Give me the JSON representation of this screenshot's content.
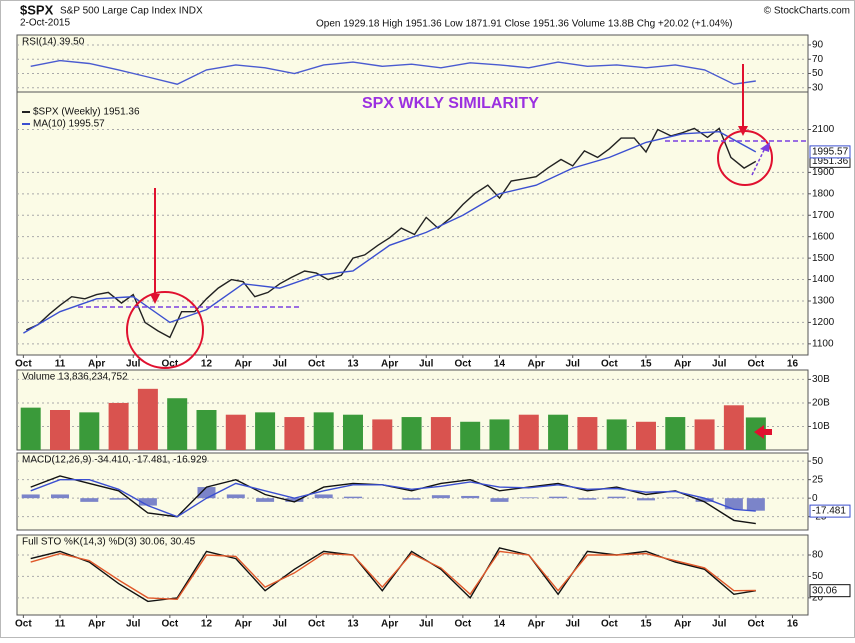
{
  "header": {
    "symbol": "$SPX",
    "name": "S&P 500 Large Cap Index INDX",
    "date": "2-Oct-2015",
    "quote": "Open 1929.18  High 1951.36  Low 1871.91  Close 1951.36  Volume 13.8B  Chg +20.02 (+1.04%)",
    "credit": "© StockCharts.com"
  },
  "chart_data": [
    {
      "type": "line",
      "title": "RSI(14) 39.50",
      "xlim": [
        2010.727,
        2016.106
      ],
      "ylim": [
        24,
        104
      ],
      "yticks": [
        30,
        50,
        70,
        90
      ],
      "series": [
        {
          "color": "#4a5bd0",
          "x": [
            2010.8,
            2011,
            2011.2,
            2011.4,
            2011.6,
            2011.8,
            2012,
            2012.2,
            2012.4,
            2012.6,
            2012.8,
            2013,
            2013.2,
            2013.4,
            2013.6,
            2013.8,
            2014,
            2014.2,
            2014.4,
            2014.6,
            2014.8,
            2015,
            2015.2,
            2015.4,
            2015.6,
            2015.75
          ],
          "values": [
            60,
            68,
            64,
            55,
            45,
            35,
            55,
            62,
            58,
            50,
            62,
            66,
            60,
            63,
            58,
            65,
            62,
            58,
            66,
            60,
            62,
            58,
            62,
            55,
            35,
            39.5
          ]
        }
      ]
    },
    {
      "type": "line",
      "annotation": "SPX WKLY SIMILARITY",
      "xlim": [
        2010.727,
        2016.106
      ],
      "ylim": [
        1048,
        2275
      ],
      "yticks": [
        1100,
        1200,
        1300,
        1400,
        1500,
        1600,
        1700,
        1800,
        1900,
        2100
      ],
      "xticks": [
        {
          "value": 2010.75,
          "label": "Oct"
        },
        {
          "value": 2011,
          "label": "11"
        },
        {
          "value": 2011.25,
          "label": "Apr"
        },
        {
          "value": 2011.5,
          "label": "Jul"
        },
        {
          "value": 2011.75,
          "label": "Oct"
        },
        {
          "value": 2012,
          "label": "12"
        },
        {
          "value": 2012.25,
          "label": "Apr"
        },
        {
          "value": 2012.5,
          "label": "Jul"
        },
        {
          "value": 2012.75,
          "label": "Oct"
        },
        {
          "value": 2013,
          "label": "13"
        },
        {
          "value": 2013.25,
          "label": "Apr"
        },
        {
          "value": 2013.5,
          "label": "Jul"
        },
        {
          "value": 2013.75,
          "label": "Oct"
        },
        {
          "value": 2014,
          "label": "14"
        },
        {
          "value": 2014.25,
          "label": "Apr"
        },
        {
          "value": 2014.5,
          "label": "Jul"
        },
        {
          "value": 2014.75,
          "label": "Oct"
        },
        {
          "value": 2015,
          "label": "15"
        },
        {
          "value": 2015.25,
          "label": "Apr"
        },
        {
          "value": 2015.5,
          "label": "Jul"
        },
        {
          "value": 2015.75,
          "label": "Oct"
        },
        {
          "value": 2016,
          "label": "16"
        }
      ],
      "series": [
        {
          "name": "$SPX (Weekly) 1951.36",
          "color": "#222222",
          "show_last": true,
          "x": [
            2010.77,
            2010.85,
            2010.93,
            2011.0,
            2011.08,
            2011.17,
            2011.25,
            2011.33,
            2011.42,
            2011.5,
            2011.58,
            2011.67,
            2011.75,
            2011.83,
            2011.92,
            2012.0,
            2012.08,
            2012.17,
            2012.25,
            2012.33,
            2012.42,
            2012.5,
            2012.58,
            2012.67,
            2012.75,
            2012.83,
            2012.92,
            2013.0,
            2013.08,
            2013.17,
            2013.25,
            2013.33,
            2013.42,
            2013.5,
            2013.58,
            2013.67,
            2013.75,
            2013.83,
            2013.92,
            2014.0,
            2014.08,
            2014.17,
            2014.25,
            2014.33,
            2014.42,
            2014.5,
            2014.58,
            2014.67,
            2014.75,
            2014.83,
            2014.92,
            2015.0,
            2015.08,
            2015.17,
            2015.25,
            2015.33,
            2015.42,
            2015.5,
            2015.58,
            2015.67,
            2015.75
          ],
          "values": [
            1165,
            1190,
            1240,
            1280,
            1320,
            1310,
            1330,
            1340,
            1290,
            1330,
            1200,
            1160,
            1130,
            1250,
            1250,
            1310,
            1360,
            1400,
            1390,
            1320,
            1340,
            1380,
            1410,
            1440,
            1430,
            1400,
            1420,
            1500,
            1515,
            1560,
            1595,
            1640,
            1610,
            1690,
            1640,
            1690,
            1750,
            1800,
            1840,
            1780,
            1860,
            1870,
            1880,
            1920,
            1960,
            1930,
            2000,
            1970,
            2010,
            2060,
            2060,
            1995,
            2100,
            2070,
            2085,
            2105,
            2063,
            2105,
            1970,
            1920,
            1951.36
          ]
        },
        {
          "name": "MA(10) 1995.57",
          "color": "#3b4fd0",
          "show_last": true,
          "x": [
            2010.75,
            2011.0,
            2011.25,
            2011.5,
            2011.75,
            2012.0,
            2012.25,
            2012.5,
            2012.75,
            2013.0,
            2013.25,
            2013.5,
            2013.75,
            2014.0,
            2014.25,
            2014.5,
            2014.75,
            2015.0,
            2015.25,
            2015.5,
            2015.75
          ],
          "values": [
            1150,
            1250,
            1310,
            1320,
            1200,
            1260,
            1380,
            1360,
            1420,
            1440,
            1560,
            1620,
            1700,
            1800,
            1840,
            1920,
            1970,
            2040,
            2080,
            2090,
            1995.57
          ]
        }
      ]
    },
    {
      "type": "bar",
      "title": "Volume 13,836,234,752",
      "xlim": [
        2010.727,
        2016.106
      ],
      "ylim": [
        0,
        34000000000
      ],
      "yticks": [
        {
          "value": 10000000000,
          "label": "10B"
        },
        {
          "value": 20000000000,
          "label": "20B"
        },
        {
          "value": 30000000000,
          "label": "30B"
        }
      ],
      "x": [
        2010.8,
        2011,
        2011.2,
        2011.4,
        2011.6,
        2011.8,
        2012,
        2012.2,
        2012.4,
        2012.6,
        2012.8,
        2013,
        2013.2,
        2013.4,
        2013.6,
        2013.8,
        2014,
        2014.2,
        2014.4,
        2014.6,
        2014.8,
        2015,
        2015.2,
        2015.4,
        2015.6,
        2015.75
      ],
      "values": [
        18000000000,
        17000000000,
        16000000000,
        20000000000,
        26000000000,
        22000000000,
        17000000000,
        15000000000,
        16000000000,
        14000000000,
        16000000000,
        15000000000,
        13000000000,
        14000000000,
        14000000000,
        12000000000,
        13000000000,
        15000000000,
        15000000000,
        14000000000,
        13000000000,
        12000000000,
        14000000000,
        13000000000,
        19000000000,
        13836234752
      ],
      "colors": [
        "#3a9a3a",
        "#d9534f",
        "#3a9a3a",
        "#d9534f",
        "#d9534f",
        "#3a9a3a",
        "#3a9a3a",
        "#d9534f",
        "#3a9a3a",
        "#d9534f",
        "#3a9a3a",
        "#3a9a3a",
        "#d9534f",
        "#3a9a3a",
        "#d9534f",
        "#3a9a3a",
        "#3a9a3a",
        "#d9534f",
        "#3a9a3a",
        "#d9534f",
        "#3a9a3a",
        "#d9534f",
        "#3a9a3a",
        "#d9534f",
        "#d9534f",
        "#3a9a3a"
      ]
    },
    {
      "type": "line",
      "title": "MACD(12,26,9) -34.410, -17.481, -16.929",
      "xlim": [
        2010.727,
        2016.106
      ],
      "ylim": [
        -43,
        61
      ],
      "yticks": [
        -25,
        0,
        25,
        50
      ],
      "series": [
        {
          "type": "bar",
          "color": "#7b84c9",
          "x": [
            2010.8,
            2011,
            2011.2,
            2011.4,
            2011.6,
            2011.8,
            2012,
            2012.2,
            2012.4,
            2012.6,
            2012.8,
            2013,
            2013.2,
            2013.4,
            2013.6,
            2013.8,
            2014,
            2014.2,
            2014.4,
            2014.6,
            2014.8,
            2015,
            2015.2,
            2015.4,
            2015.6,
            2015.75
          ],
          "values": [
            5,
            5,
            -5,
            -2,
            -10,
            0,
            15,
            5,
            -5,
            -5,
            5,
            2,
            0,
            -2,
            4,
            3,
            -5,
            1,
            2,
            -2,
            2,
            -3,
            1,
            -5,
            -15,
            -16.929
          ]
        },
        {
          "color": "#111111",
          "x": [
            2010.8,
            2011,
            2011.2,
            2011.4,
            2011.6,
            2011.8,
            2012,
            2012.2,
            2012.4,
            2012.6,
            2012.8,
            2013,
            2013.2,
            2013.4,
            2013.6,
            2013.8,
            2014,
            2014.2,
            2014.4,
            2014.6,
            2014.8,
            2015,
            2015.2,
            2015.4,
            2015.6,
            2015.75
          ],
          "values": [
            15,
            30,
            20,
            10,
            -20,
            -25,
            15,
            25,
            5,
            -5,
            15,
            20,
            18,
            10,
            20,
            25,
            10,
            15,
            20,
            10,
            15,
            5,
            10,
            -5,
            -30,
            -34.41
          ]
        },
        {
          "color": "#3b4fd0",
          "show_last": true,
          "x": [
            2010.8,
            2011,
            2011.2,
            2011.4,
            2011.6,
            2011.8,
            2012,
            2012.2,
            2012.4,
            2012.6,
            2012.8,
            2013,
            2013.2,
            2013.4,
            2013.6,
            2013.8,
            2014,
            2014.2,
            2014.4,
            2014.6,
            2014.8,
            2015,
            2015.2,
            2015.4,
            2015.6,
            2015.75
          ],
          "values": [
            10,
            25,
            25,
            12,
            -10,
            -25,
            0,
            20,
            10,
            0,
            10,
            18,
            18,
            12,
            16,
            22,
            15,
            14,
            18,
            12,
            13,
            8,
            9,
            0,
            -15,
            -17.481
          ]
        }
      ]
    },
    {
      "type": "line",
      "title": "Full STO %K(14,3) %D(3) 30.06, 30.45",
      "xlim": [
        2010.727,
        2016.106
      ],
      "ylim": [
        -4,
        108
      ],
      "yticks": [
        20,
        50,
        80
      ],
      "xticks": [
        {
          "value": 2010.75,
          "label": "Oct"
        },
        {
          "value": 2011,
          "label": "11"
        },
        {
          "value": 2011.25,
          "label": "Apr"
        },
        {
          "value": 2011.5,
          "label": "Jul"
        },
        {
          "value": 2011.75,
          "label": "Oct"
        },
        {
          "value": 2012,
          "label": "12"
        },
        {
          "value": 2012.25,
          "label": "Apr"
        },
        {
          "value": 2012.5,
          "label": "Jul"
        },
        {
          "value": 2012.75,
          "label": "Oct"
        },
        {
          "value": 2013,
          "label": "13"
        },
        {
          "value": 2013.25,
          "label": "Apr"
        },
        {
          "value": 2013.5,
          "label": "Jul"
        },
        {
          "value": 2013.75,
          "label": "Oct"
        },
        {
          "value": 2014,
          "label": "14"
        },
        {
          "value": 2014.25,
          "label": "Apr"
        },
        {
          "value": 2014.5,
          "label": "Jul"
        },
        {
          "value": 2014.75,
          "label": "Oct"
        },
        {
          "value": 2015,
          "label": "15"
        },
        {
          "value": 2015.25,
          "label": "Apr"
        },
        {
          "value": 2015.5,
          "label": "Jul"
        },
        {
          "value": 2015.75,
          "label": "Oct"
        },
        {
          "value": 2016,
          "label": "16"
        }
      ],
      "series": [
        {
          "color": "#111111",
          "show_last": true,
          "x": [
            2010.8,
            2011,
            2011.2,
            2011.4,
            2011.6,
            2011.8,
            2012,
            2012.2,
            2012.4,
            2012.6,
            2012.8,
            2013,
            2013.2,
            2013.4,
            2013.6,
            2013.8,
            2014,
            2014.2,
            2014.4,
            2014.6,
            2014.8,
            2015,
            2015.2,
            2015.4,
            2015.6,
            2015.75
          ],
          "values": [
            75,
            85,
            70,
            40,
            15,
            20,
            85,
            75,
            30,
            60,
            85,
            80,
            30,
            85,
            60,
            20,
            90,
            80,
            25,
            85,
            80,
            85,
            70,
            60,
            25,
            30.06
          ]
        },
        {
          "color": "#e0582a",
          "x": [
            2010.8,
            2011,
            2011.2,
            2011.4,
            2011.6,
            2011.8,
            2012,
            2012.2,
            2012.4,
            2012.6,
            2012.8,
            2013,
            2013.2,
            2013.4,
            2013.6,
            2013.8,
            2014,
            2014.2,
            2014.4,
            2014.6,
            2014.8,
            2015,
            2015.2,
            2015.4,
            2015.6,
            2015.75
          ],
          "values": [
            70,
            82,
            72,
            45,
            20,
            18,
            80,
            78,
            35,
            55,
            82,
            80,
            35,
            82,
            62,
            25,
            85,
            80,
            30,
            80,
            80,
            82,
            72,
            62,
            30,
            30.45
          ]
        }
      ]
    }
  ]
}
